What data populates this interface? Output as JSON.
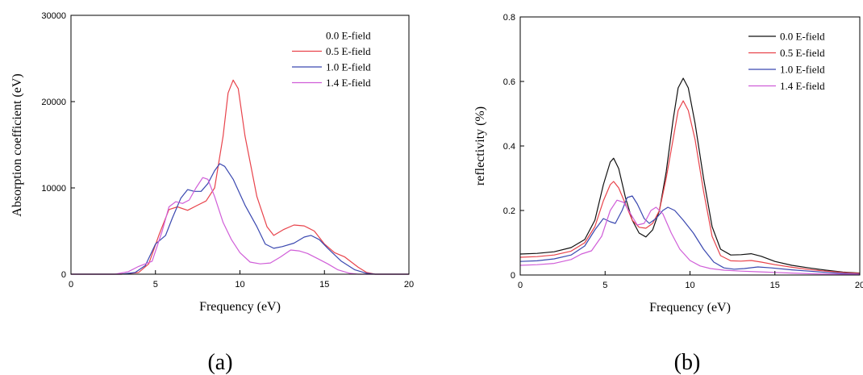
{
  "chart_data": [
    {
      "type": "line",
      "panel_label": "(a)",
      "xlabel": "Frequency (eV)",
      "ylabel": "Absorption coefficient (eV)",
      "xlim": [
        0,
        20
      ],
      "ylim": [
        0,
        30000
      ],
      "xticks": [
        0,
        5,
        10,
        15,
        20
      ],
      "yticks": [
        0,
        10000,
        20000,
        30000
      ],
      "grid": false,
      "legend_position": "top-right",
      "series": [
        {
          "name": "0.0 E-field",
          "color": "#ffffff",
          "points": [
            [
              0,
              0
            ],
            [
              20,
              0
            ]
          ]
        },
        {
          "name": "0.5 E-field",
          "color": "#e8434b",
          "points": [
            [
              0,
              0
            ],
            [
              3,
              0
            ],
            [
              4,
              200
            ],
            [
              4.6,
              1200
            ],
            [
              5.2,
              4500
            ],
            [
              5.8,
              7500
            ],
            [
              6.3,
              7800
            ],
            [
              6.9,
              7400
            ],
            [
              7.5,
              8000
            ],
            [
              8,
              8500
            ],
            [
              8.5,
              10000
            ],
            [
              9,
              16000
            ],
            [
              9.3,
              21000
            ],
            [
              9.6,
              22500
            ],
            [
              9.9,
              21500
            ],
            [
              10.3,
              16000
            ],
            [
              11,
              9000
            ],
            [
              11.6,
              5500
            ],
            [
              12,
              4500
            ],
            [
              12.6,
              5200
            ],
            [
              13.2,
              5700
            ],
            [
              13.8,
              5600
            ],
            [
              14.4,
              5000
            ],
            [
              15,
              3500
            ],
            [
              15.6,
              2500
            ],
            [
              16.2,
              2000
            ],
            [
              17,
              800
            ],
            [
              17.5,
              200
            ],
            [
              18,
              0
            ],
            [
              20,
              0
            ]
          ]
        },
        {
          "name": "1.0 E-field",
          "color": "#3a48b0",
          "points": [
            [
              0,
              0
            ],
            [
              3,
              0
            ],
            [
              3.8,
              200
            ],
            [
              4.4,
              1000
            ],
            [
              5,
              3500
            ],
            [
              5.6,
              4500
            ],
            [
              6,
              6500
            ],
            [
              6.5,
              8800
            ],
            [
              6.9,
              9800
            ],
            [
              7.3,
              9600
            ],
            [
              7.7,
              9600
            ],
            [
              8.1,
              10500
            ],
            [
              8.5,
              12000
            ],
            [
              8.8,
              12800
            ],
            [
              9.1,
              12500
            ],
            [
              9.6,
              11000
            ],
            [
              10.3,
              8000
            ],
            [
              11,
              5500
            ],
            [
              11.5,
              3500
            ],
            [
              12,
              3000
            ],
            [
              12.5,
              3200
            ],
            [
              13.2,
              3600
            ],
            [
              13.8,
              4300
            ],
            [
              14.2,
              4500
            ],
            [
              14.7,
              4000
            ],
            [
              15.2,
              3000
            ],
            [
              16,
              1500
            ],
            [
              16.8,
              500
            ],
            [
              17.5,
              100
            ],
            [
              18,
              0
            ],
            [
              20,
              0
            ]
          ]
        },
        {
          "name": "1.4 E-field",
          "color": "#d05ed8",
          "points": [
            [
              0,
              0
            ],
            [
              2.6,
              0
            ],
            [
              3.4,
              300
            ],
            [
              4,
              900
            ],
            [
              4.8,
              1500
            ],
            [
              5.4,
              5000
            ],
            [
              5.8,
              7800
            ],
            [
              6.2,
              8400
            ],
            [
              6.6,
              8200
            ],
            [
              7,
              8600
            ],
            [
              7.4,
              10000
            ],
            [
              7.8,
              11200
            ],
            [
              8.1,
              11000
            ],
            [
              8.5,
              9000
            ],
            [
              9,
              6000
            ],
            [
              9.5,
              4000
            ],
            [
              10,
              2500
            ],
            [
              10.6,
              1400
            ],
            [
              11.2,
              1200
            ],
            [
              11.8,
              1300
            ],
            [
              12.4,
              2000
            ],
            [
              13,
              2800
            ],
            [
              13.5,
              2700
            ],
            [
              14,
              2400
            ],
            [
              14.6,
              1800
            ],
            [
              15.2,
              1200
            ],
            [
              15.8,
              500
            ],
            [
              16.5,
              100
            ],
            [
              17,
              0
            ],
            [
              20,
              0
            ]
          ]
        }
      ]
    },
    {
      "type": "line",
      "panel_label": "(b)",
      "xlabel": "Frequency (eV)",
      "ylabel": "reflectivity (%)",
      "xlim": [
        0,
        20
      ],
      "ylim": [
        0,
        0.8
      ],
      "xticks": [
        0,
        5,
        10,
        15,
        20
      ],
      "yticks": [
        0.0,
        0.2,
        0.4,
        0.6,
        0.8
      ],
      "grid": false,
      "legend_position": "top-right",
      "series": [
        {
          "name": "0.0 E-field",
          "color": "#111111",
          "points": [
            [
              0,
              0.065
            ],
            [
              1,
              0.067
            ],
            [
              2,
              0.072
            ],
            [
              3,
              0.085
            ],
            [
              3.8,
              0.11
            ],
            [
              4.4,
              0.17
            ],
            [
              4.9,
              0.28
            ],
            [
              5.3,
              0.35
            ],
            [
              5.5,
              0.362
            ],
            [
              5.8,
              0.33
            ],
            [
              6.2,
              0.24
            ],
            [
              6.6,
              0.17
            ],
            [
              7,
              0.13
            ],
            [
              7.4,
              0.118
            ],
            [
              7.8,
              0.14
            ],
            [
              8.2,
              0.2
            ],
            [
              8.6,
              0.32
            ],
            [
              9,
              0.48
            ],
            [
              9.3,
              0.58
            ],
            [
              9.6,
              0.61
            ],
            [
              9.9,
              0.58
            ],
            [
              10.3,
              0.47
            ],
            [
              10.8,
              0.3
            ],
            [
              11.3,
              0.15
            ],
            [
              11.8,
              0.08
            ],
            [
              12.4,
              0.062
            ],
            [
              13,
              0.063
            ],
            [
              13.6,
              0.066
            ],
            [
              14.2,
              0.058
            ],
            [
              15,
              0.042
            ],
            [
              16,
              0.03
            ],
            [
              17,
              0.022
            ],
            [
              18,
              0.015
            ],
            [
              19,
              0.009
            ],
            [
              20,
              0.006
            ]
          ]
        },
        {
          "name": "0.5 E-field",
          "color": "#e8434b",
          "points": [
            [
              0,
              0.055
            ],
            [
              1,
              0.057
            ],
            [
              2,
              0.062
            ],
            [
              3,
              0.074
            ],
            [
              3.8,
              0.1
            ],
            [
              4.4,
              0.15
            ],
            [
              4.9,
              0.23
            ],
            [
              5.3,
              0.28
            ],
            [
              5.5,
              0.29
            ],
            [
              5.8,
              0.27
            ],
            [
              6.2,
              0.22
            ],
            [
              6.6,
              0.17
            ],
            [
              7,
              0.148
            ],
            [
              7.4,
              0.145
            ],
            [
              7.8,
              0.16
            ],
            [
              8.2,
              0.2
            ],
            [
              8.6,
              0.3
            ],
            [
              9,
              0.42
            ],
            [
              9.3,
              0.51
            ],
            [
              9.6,
              0.54
            ],
            [
              9.9,
              0.51
            ],
            [
              10.3,
              0.42
            ],
            [
              10.8,
              0.26
            ],
            [
              11.3,
              0.12
            ],
            [
              11.8,
              0.06
            ],
            [
              12.4,
              0.044
            ],
            [
              13,
              0.043
            ],
            [
              13.6,
              0.045
            ],
            [
              14.2,
              0.04
            ],
            [
              15,
              0.032
            ],
            [
              16,
              0.024
            ],
            [
              17,
              0.017
            ],
            [
              18,
              0.012
            ],
            [
              19,
              0.008
            ],
            [
              20,
              0.005
            ]
          ]
        },
        {
          "name": "1.0 E-field",
          "color": "#3a48b0",
          "points": [
            [
              0,
              0.042
            ],
            [
              1,
              0.044
            ],
            [
              2,
              0.05
            ],
            [
              3,
              0.062
            ],
            [
              3.8,
              0.09
            ],
            [
              4.4,
              0.14
            ],
            [
              4.9,
              0.175
            ],
            [
              5.3,
              0.165
            ],
            [
              5.6,
              0.16
            ],
            [
              6,
              0.2
            ],
            [
              6.3,
              0.24
            ],
            [
              6.6,
              0.245
            ],
            [
              6.9,
              0.22
            ],
            [
              7.3,
              0.175
            ],
            [
              7.6,
              0.16
            ],
            [
              8,
              0.175
            ],
            [
              8.4,
              0.2
            ],
            [
              8.7,
              0.21
            ],
            [
              9.1,
              0.2
            ],
            [
              9.6,
              0.17
            ],
            [
              10.2,
              0.13
            ],
            [
              10.8,
              0.08
            ],
            [
              11.4,
              0.04
            ],
            [
              12,
              0.022
            ],
            [
              12.6,
              0.018
            ],
            [
              13.2,
              0.02
            ],
            [
              14,
              0.025
            ],
            [
              14.8,
              0.022
            ],
            [
              16,
              0.016
            ],
            [
              17,
              0.012
            ],
            [
              18,
              0.008
            ],
            [
              19,
              0.005
            ],
            [
              20,
              0.003
            ]
          ]
        },
        {
          "name": "1.4 E-field",
          "color": "#d05ed8",
          "points": [
            [
              0,
              0.03
            ],
            [
              1,
              0.032
            ],
            [
              2,
              0.036
            ],
            [
              3,
              0.048
            ],
            [
              3.6,
              0.065
            ],
            [
              4.2,
              0.075
            ],
            [
              4.8,
              0.12
            ],
            [
              5.3,
              0.2
            ],
            [
              5.7,
              0.232
            ],
            [
              6.1,
              0.225
            ],
            [
              6.5,
              0.19
            ],
            [
              6.9,
              0.155
            ],
            [
              7.3,
              0.16
            ],
            [
              7.7,
              0.2
            ],
            [
              8,
              0.21
            ],
            [
              8.4,
              0.19
            ],
            [
              8.9,
              0.13
            ],
            [
              9.4,
              0.08
            ],
            [
              10,
              0.045
            ],
            [
              10.6,
              0.028
            ],
            [
              11.2,
              0.02
            ],
            [
              12,
              0.015
            ],
            [
              13,
              0.012
            ],
            [
              14,
              0.01
            ],
            [
              15,
              0.008
            ],
            [
              16,
              0.006
            ],
            [
              17,
              0.004
            ],
            [
              18,
              0.003
            ],
            [
              20,
              0.002
            ]
          ]
        }
      ]
    }
  ]
}
